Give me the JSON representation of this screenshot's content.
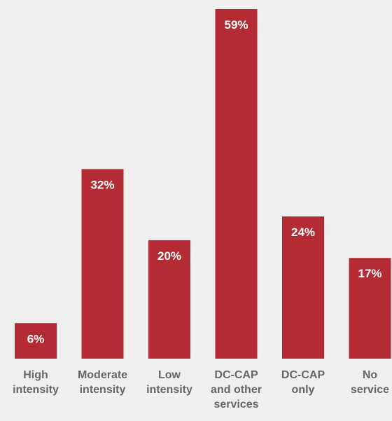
{
  "chart_data": {
    "type": "bar",
    "categories": [
      [
        "High",
        "intensity"
      ],
      [
        "Moderate",
        "intensity"
      ],
      [
        "Low",
        "intensity"
      ],
      [
        "DC-CAP",
        "and other",
        "services"
      ],
      [
        "DC-CAP",
        "only"
      ],
      [
        "No",
        "service"
      ]
    ],
    "values": [
      6,
      32,
      20,
      59,
      24,
      17
    ],
    "value_labels": [
      "6%",
      "32%",
      "20%",
      "59%",
      "24%",
      "17%"
    ],
    "ylim": [
      0,
      59
    ],
    "grid": false,
    "bar_color": "#b42b33",
    "label_color": "#ffffff",
    "category_color": "#666666"
  }
}
